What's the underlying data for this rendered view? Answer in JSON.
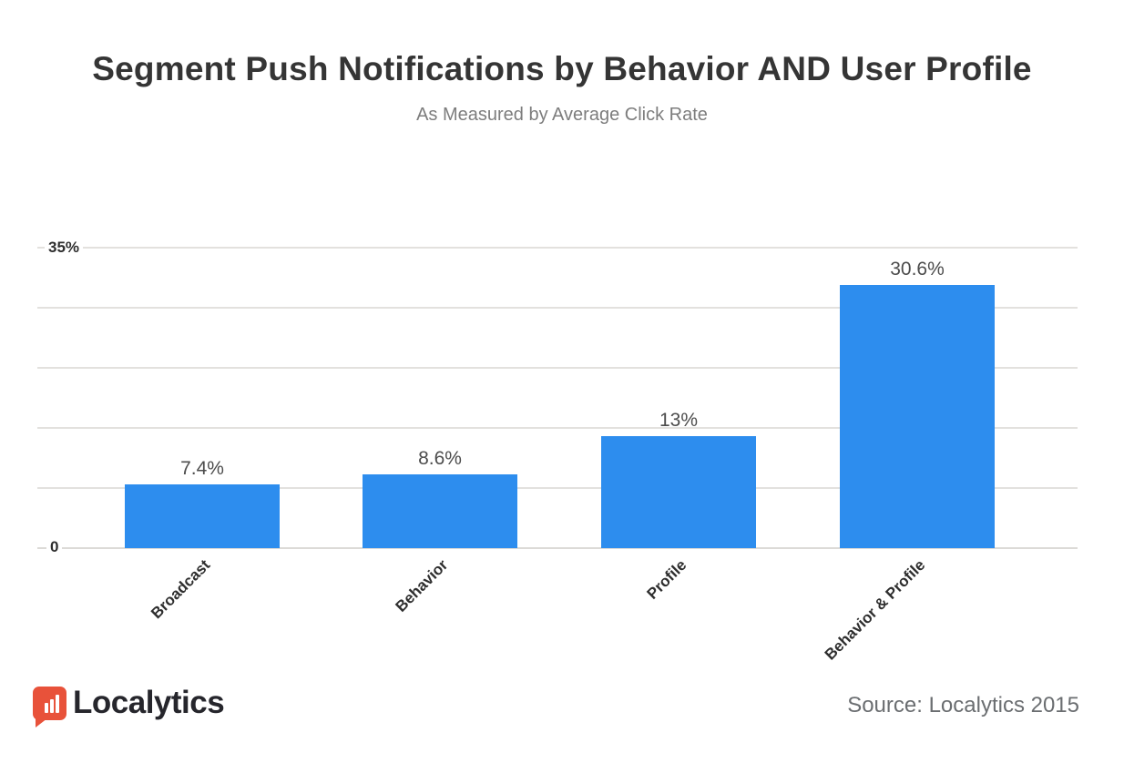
{
  "chart_data": {
    "type": "bar",
    "title": "Segment Push Notifications by Behavior AND User Profile",
    "subtitle": "As Measured by Average Click Rate",
    "categories": [
      "Broadcast",
      "Behavior",
      "Profile",
      "Behavior & Profile"
    ],
    "values": [
      7.4,
      8.6,
      13,
      30.6
    ],
    "value_labels": [
      "7.4%",
      "8.6%",
      "13%",
      "30.6%"
    ],
    "xlabel": "",
    "ylabel": "",
    "ylim": [
      0,
      35
    ],
    "gridline_step_pct": 7,
    "y_tick_labels": [
      "35%",
      "0"
    ],
    "grid": "on",
    "legend": "none",
    "x_label_rotation_deg": -45
  },
  "colors": {
    "bar_blue": "#2d8dee",
    "brand_orange": "#e8523a",
    "gridline": "#e3e1de",
    "title_text": "#353535",
    "subtitle_text": "#7d7d7d"
  },
  "footer": {
    "brand": "Localytics",
    "source": "Source: Localytics 2015"
  }
}
